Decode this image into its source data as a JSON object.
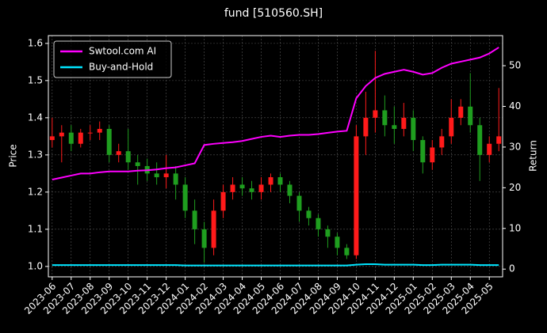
{
  "chart_data": {
    "type": "candlestick",
    "title": "fund [510560.SH]",
    "ylabel": "Price",
    "y2label": "Return",
    "x": [
      0,
      0.5,
      1,
      1.5,
      2,
      2.5,
      3,
      3.5,
      4,
      4.5,
      5,
      5.5,
      6,
      6.5,
      7,
      7.5,
      8,
      8.5,
      9,
      9.5,
      10,
      10.5,
      11,
      11.5,
      12,
      12.5,
      13,
      13.5,
      14,
      14.5,
      15,
      15.5,
      16,
      16.5,
      17,
      17.5,
      18,
      18.5,
      19,
      19.5,
      20,
      20.5,
      21,
      21.5,
      22,
      22.5,
      23,
      23.5
    ],
    "open": [
      1.34,
      1.35,
      1.36,
      1.33,
      1.36,
      1.36,
      1.37,
      1.3,
      1.31,
      1.28,
      1.27,
      1.25,
      1.24,
      1.25,
      1.22,
      1.15,
      1.1,
      1.05,
      1.15,
      1.2,
      1.22,
      1.21,
      1.2,
      1.22,
      1.24,
      1.22,
      1.19,
      1.15,
      1.13,
      1.1,
      1.08,
      1.05,
      1.03,
      1.35,
      1.4,
      1.42,
      1.38,
      1.37,
      1.4,
      1.34,
      1.28,
      1.32,
      1.35,
      1.4,
      1.43,
      1.38,
      1.3,
      1.33
    ],
    "high": [
      1.4,
      1.38,
      1.38,
      1.37,
      1.38,
      1.39,
      1.38,
      1.33,
      1.37,
      1.3,
      1.29,
      1.28,
      1.3,
      1.27,
      1.24,
      1.18,
      1.12,
      1.18,
      1.22,
      1.24,
      1.24,
      1.23,
      1.24,
      1.25,
      1.25,
      1.23,
      1.2,
      1.16,
      1.14,
      1.11,
      1.09,
      1.06,
      1.38,
      1.47,
      1.58,
      1.46,
      1.43,
      1.44,
      1.42,
      1.35,
      1.34,
      1.37,
      1.45,
      1.45,
      1.52,
      1.4,
      1.35,
      1.48
    ],
    "low": [
      1.32,
      1.28,
      1.31,
      1.32,
      1.34,
      1.34,
      1.28,
      1.28,
      1.26,
      1.22,
      1.23,
      1.22,
      1.21,
      1.18,
      1.13,
      1.06,
      1.01,
      1.03,
      1.13,
      1.18,
      1.19,
      1.18,
      1.18,
      1.2,
      1.2,
      1.17,
      1.12,
      1.11,
      1.08,
      1.05,
      1.03,
      1.02,
      1.02,
      1.3,
      1.36,
      1.35,
      1.33,
      1.35,
      1.31,
      1.25,
      1.26,
      1.3,
      1.33,
      1.38,
      1.36,
      1.23,
      1.28,
      1.31
    ],
    "close": [
      1.35,
      1.36,
      1.33,
      1.36,
      1.36,
      1.37,
      1.3,
      1.31,
      1.28,
      1.27,
      1.25,
      1.24,
      1.25,
      1.22,
      1.15,
      1.1,
      1.05,
      1.15,
      1.2,
      1.22,
      1.21,
      1.2,
      1.22,
      1.24,
      1.22,
      1.19,
      1.15,
      1.13,
      1.1,
      1.08,
      1.05,
      1.03,
      1.35,
      1.4,
      1.42,
      1.38,
      1.37,
      1.4,
      1.34,
      1.28,
      1.32,
      1.35,
      1.4,
      1.43,
      1.38,
      1.3,
      1.33,
      1.35
    ],
    "up_color": "#ff1a1a",
    "down_color": "#1f9e1f",
    "series": [
      {
        "name": "Swtool.com AI",
        "color": "#ff00ff",
        "axis": "y2",
        "values": [
          22,
          22.5,
          23,
          23.5,
          23.5,
          23.8,
          24,
          24,
          24,
          24.2,
          24.3,
          24.5,
          24.8,
          25,
          25.5,
          26,
          30.5,
          30.8,
          31,
          31.2,
          31.5,
          32,
          32.5,
          32.8,
          32.5,
          32.8,
          33,
          33,
          33.2,
          33.5,
          33.8,
          34,
          42,
          45,
          47,
          48,
          48.5,
          49,
          48.5,
          47.8,
          48.2,
          49.5,
          50.5,
          51,
          51.5,
          52,
          53,
          54.5
        ]
      },
      {
        "name": "Buy-and-Hold",
        "color": "#00e5ff",
        "axis": "y2",
        "values": [
          1,
          1,
          1,
          1,
          1,
          1,
          1,
          1,
          1,
          1,
          1,
          1,
          1,
          1,
          0.9,
          0.9,
          0.9,
          0.9,
          0.9,
          0.9,
          0.9,
          0.9,
          0.9,
          0.9,
          0.9,
          0.9,
          0.9,
          0.9,
          0.9,
          0.9,
          0.9,
          0.9,
          1.1,
          1.2,
          1.2,
          1.1,
          1.1,
          1.1,
          1.1,
          1,
          1,
          1.1,
          1.1,
          1.1,
          1.1,
          1,
          1,
          1
        ]
      }
    ],
    "xlim": [
      -0.2,
      23.7
    ],
    "xticks": [
      {
        "value": 0,
        "label": "2023-06"
      },
      {
        "value": 1,
        "label": "2023-07"
      },
      {
        "value": 2,
        "label": "2023-08"
      },
      {
        "value": 3,
        "label": "2023-09"
      },
      {
        "value": 4,
        "label": "2023-10"
      },
      {
        "value": 5,
        "label": "2023-11"
      },
      {
        "value": 6,
        "label": "2023-12"
      },
      {
        "value": 7,
        "label": "2024-01"
      },
      {
        "value": 8,
        "label": "2024-02"
      },
      {
        "value": 9,
        "label": "2024-03"
      },
      {
        "value": 10,
        "label": "2024-04"
      },
      {
        "value": 11,
        "label": "2024-05"
      },
      {
        "value": 12,
        "label": "2024-06"
      },
      {
        "value": 13,
        "label": "2024-07"
      },
      {
        "value": 14,
        "label": "2024-08"
      },
      {
        "value": 15,
        "label": "2024-09"
      },
      {
        "value": 16,
        "label": "2024-10"
      },
      {
        "value": 17,
        "label": "2024-11"
      },
      {
        "value": 18,
        "label": "2024-12"
      },
      {
        "value": 19,
        "label": "2025-01"
      },
      {
        "value": 20,
        "label": "2025-02"
      },
      {
        "value": 21,
        "label": "2025-03"
      },
      {
        "value": 22,
        "label": "2025-04"
      },
      {
        "value": 23,
        "label": "2025-05"
      }
    ],
    "ylim": [
      0.972,
      1.621
    ],
    "yticks": [
      {
        "value": 1.0,
        "label": "1.0"
      },
      1.1,
      1.2,
      1.3,
      1.4,
      1.5,
      1.6
    ],
    "y2lim": [
      -1.9,
      57.4
    ],
    "y2ticks": [
      0,
      10,
      20,
      30,
      40,
      50
    ],
    "grid": true,
    "legend": "upper left"
  }
}
